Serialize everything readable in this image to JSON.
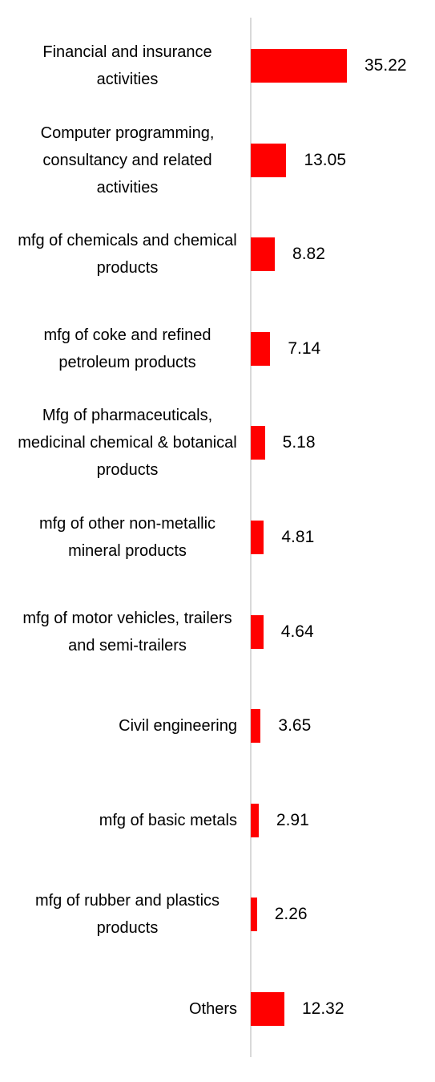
{
  "chart_data": {
    "type": "bar",
    "orientation": "horizontal",
    "color": "#ff0000",
    "categories": [
      "Financial and insurance activities",
      "Computer programming, consultancy and related activities",
      "mfg of chemicals and chemical products",
      "mfg of coke and refined petroleum products",
      "Mfg of pharmaceuticals, medicinal chemical & botanical products",
      "mfg of other non-metallic mineral products",
      "mfg of motor vehicles, trailers and semi-trailers",
      "Civil engineering",
      "mfg of basic metals",
      "mfg of rubber and plastics products",
      "Others"
    ],
    "values": [
      35.22,
      13.05,
      8.82,
      7.14,
      5.18,
      4.81,
      4.64,
      3.65,
      2.91,
      2.26,
      12.32
    ]
  }
}
